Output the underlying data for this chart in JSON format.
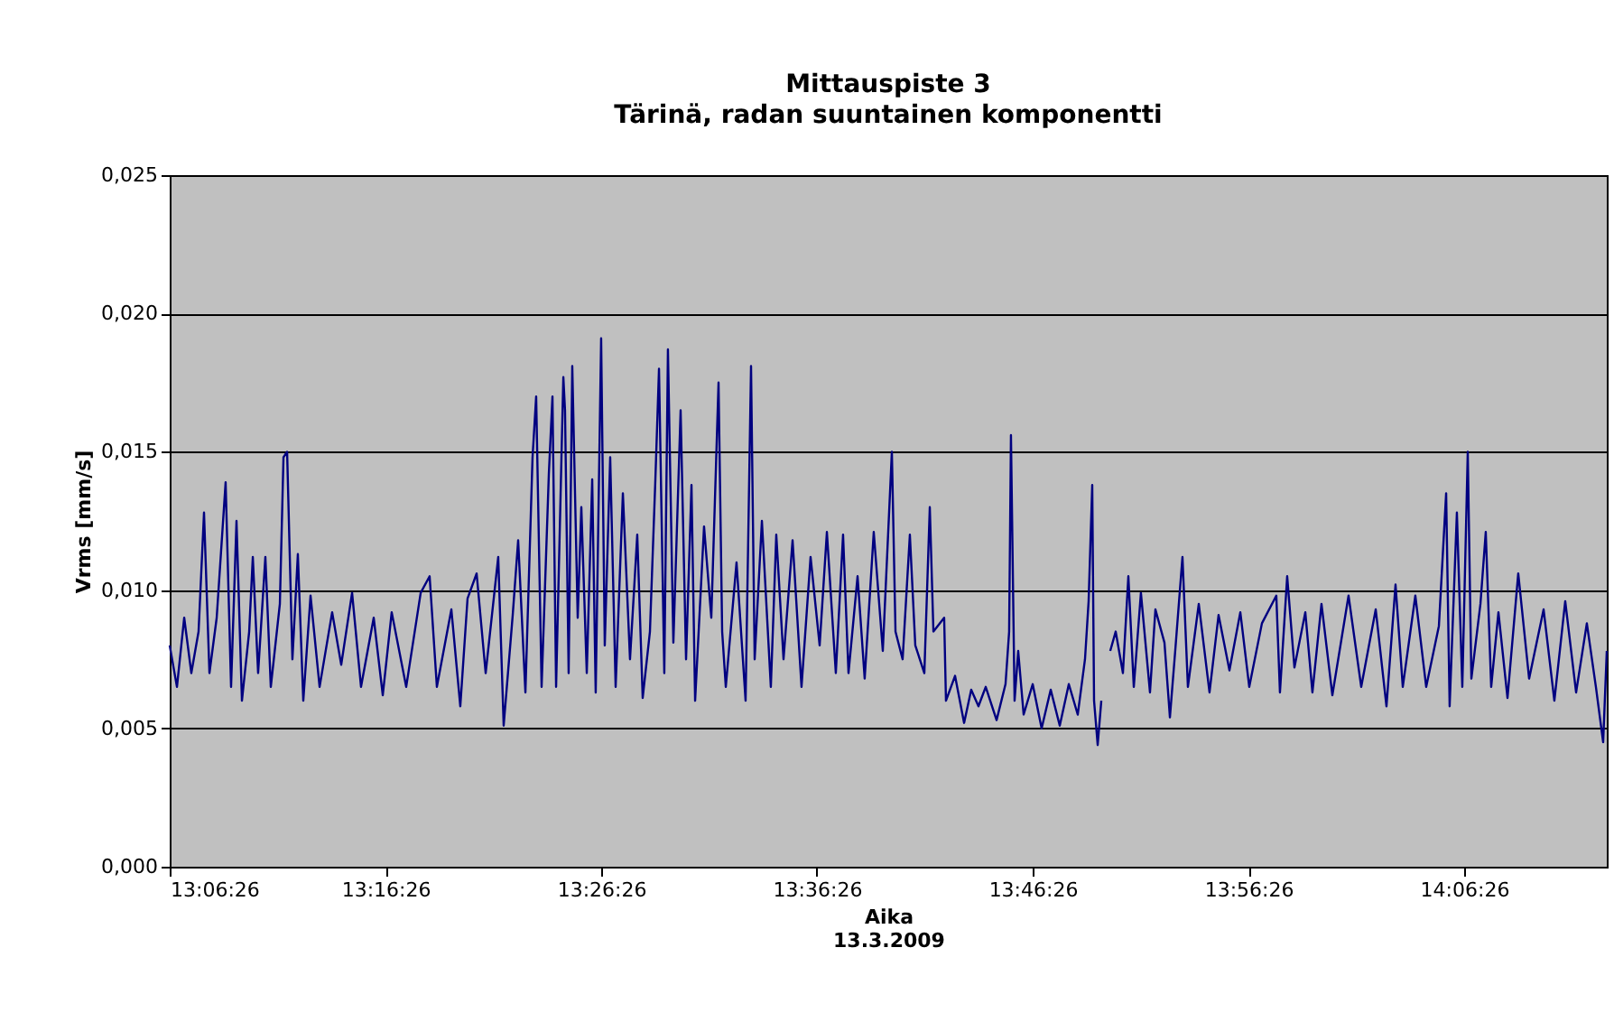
{
  "chart_data": {
    "type": "line",
    "title": "Mittauspiste 3",
    "subtitle": "Tärinä, radan suuntainen komponentti",
    "xlabel": "Aika",
    "ylabel": "Vrms [mm/s]",
    "annotations": [
      "13.3.2009"
    ],
    "x": [
      13.1072,
      13.1128,
      13.1184,
      13.1239,
      13.1295,
      13.1337,
      13.1379,
      13.1435,
      13.1504,
      13.1546,
      13.1588,
      13.163,
      13.1686,
      13.1714,
      13.1755,
      13.1811,
      13.1853,
      13.1923,
      13.1951,
      13.1979,
      13.202,
      13.2062,
      13.2104,
      13.216,
      13.223,
      13.2327,
      13.2397,
      13.2481,
      13.255,
      13.2648,
      13.2718,
      13.2787,
      13.2899,
      13.3011,
      13.308,
      13.3136,
      13.3248,
      13.3317,
      13.3373,
      13.3443,
      13.3513,
      13.361,
      13.3652,
      13.3722,
      13.3764,
      13.382,
      13.3875,
      13.3903,
      13.3945,
      13.4001,
      13.4029,
      13.4057,
      13.4113,
      13.4126,
      13.4154,
      13.4182,
      13.4224,
      13.4252,
      13.4294,
      13.4336,
      13.4363,
      13.4405,
      13.4433,
      13.4475,
      13.4517,
      13.4573,
      13.4628,
      13.4684,
      13.4726,
      13.4782,
      13.4824,
      13.4852,
      13.4893,
      13.4921,
      13.4963,
      13.5019,
      13.5061,
      13.5103,
      13.5131,
      13.52,
      13.5256,
      13.5312,
      13.534,
      13.5368,
      13.5451,
      13.5521,
      13.5563,
      13.5591,
      13.5647,
      13.5716,
      13.5758,
      13.5814,
      13.5884,
      13.5953,
      13.6023,
      13.6093,
      13.6149,
      13.6218,
      13.6274,
      13.6316,
      13.6386,
      13.6441,
      13.6511,
      13.6581,
      13.6651,
      13.6679,
      13.6734,
      13.679,
      13.6832,
      13.6902,
      13.6944,
      13.6972,
      13.7055,
      13.7069,
      13.7139,
      13.7209,
      13.7264,
      13.732,
      13.7376,
      13.746,
      13.7529,
      13.7557,
      13.7571,
      13.7599,
      13.7627,
      13.7669,
      13.7739,
      13.7808,
      13.7878,
      13.7948,
      13.8018,
      13.8087,
      13.8143,
      13.8171,
      13.8199,
      13.8213,
      13.8241,
      13.8269,
      13.83,
      13.8338,
      13.838,
      13.8436,
      13.8478,
      13.852,
      13.8575,
      13.8645,
      13.8687,
      13.8757,
      13.8799,
      13.884,
      13.8896,
      13.8938,
      13.9022,
      13.9105,
      13.9175,
      13.9259,
      13.9343,
      13.9412,
      13.951,
      13.9621,
      13.9649,
      13.9705,
      13.9761,
      13.9845,
      13.99,
      13.997,
      14.0054,
      14.0179,
      14.0277,
      14.0389,
      14.0472,
      14.0542,
      14.0598,
      14.0695,
      14.0779,
      14.0877,
      14.0933,
      14.096,
      14.1016,
      14.1058,
      14.11,
      14.1128,
      14.1198,
      14.1239,
      14.1281,
      14.1337,
      14.1407,
      14.149,
      14.1574,
      14.1686,
      14.1769,
      14.1853,
      14.1937,
      14.202,
      14.209,
      14.2146,
      14.2174
    ],
    "series": [
      {
        "color": "#000080",
        "values": [
          0.008,
          0.0065,
          0.009,
          0.007,
          0.0085,
          0.0128,
          0.007,
          0.009,
          0.0139,
          0.0065,
          0.0125,
          0.006,
          0.0085,
          0.0112,
          0.007,
          0.0112,
          0.0065,
          0.0095,
          0.0148,
          0.015,
          0.0075,
          0.0113,
          0.006,
          0.0098,
          0.0065,
          0.0092,
          0.0073,
          0.0099,
          0.0065,
          0.009,
          0.0062,
          0.0092,
          0.0065,
          0.0099,
          0.0105,
          0.0065,
          0.0093,
          0.0058,
          0.0097,
          0.0106,
          0.007,
          0.0112,
          0.0051,
          0.0091,
          0.0118,
          0.0063,
          0.0148,
          0.017,
          0.0065,
          0.0142,
          0.017,
          0.0065,
          0.0177,
          0.0165,
          0.007,
          0.0181,
          0.009,
          0.013,
          0.007,
          0.014,
          0.0063,
          0.0191,
          0.008,
          0.0148,
          0.0065,
          0.0135,
          0.0075,
          0.012,
          0.0061,
          0.0085,
          0.014,
          0.018,
          0.007,
          0.0187,
          0.0081,
          0.0165,
          0.0075,
          0.0138,
          0.006,
          0.0123,
          0.009,
          0.0175,
          0.0085,
          0.0065,
          0.011,
          0.006,
          0.0181,
          0.0075,
          0.0125,
          0.0065,
          0.012,
          0.0075,
          0.0118,
          0.0065,
          0.0112,
          0.008,
          0.0121,
          0.007,
          0.012,
          0.007,
          0.0105,
          0.0068,
          0.0121,
          0.0078,
          0.015,
          0.0085,
          0.0075,
          0.012,
          0.008,
          0.007,
          0.013,
          0.0085,
          0.009,
          0.006,
          0.0069,
          0.0052,
          0.0064,
          0.0058,
          0.0065,
          0.0053,
          0.0066,
          0.0085,
          0.0156,
          0.006,
          0.0078,
          0.0055,
          0.0066,
          0.005,
          0.0064,
          0.0051,
          0.0066,
          0.0055,
          0.0075,
          0.0096,
          0.0138,
          0.006,
          0.0044,
          0.006,
          null,
          0.0078,
          0.0085,
          0.007,
          0.0105,
          0.0065,
          0.0099,
          0.0063,
          0.0093,
          0.0081,
          0.0054,
          0.0078,
          0.0112,
          0.0065,
          0.0095,
          0.0063,
          0.0091,
          0.0071,
          0.0092,
          0.0065,
          0.0088,
          0.0098,
          0.0063,
          0.0105,
          0.0072,
          0.0092,
          0.0063,
          0.0095,
          0.0062,
          0.0098,
          0.0065,
          0.0093,
          0.0058,
          0.0102,
          0.0065,
          0.0098,
          0.0065,
          0.0087,
          0.0135,
          0.0058,
          0.0128,
          0.0065,
          0.015,
          0.0068,
          0.0095,
          0.0121,
          0.0065,
          0.0092,
          0.0061,
          0.0106,
          0.0068,
          0.0093,
          0.006,
          0.0096,
          0.0063,
          0.0088,
          0.0065,
          0.0045,
          0.0078
        ]
      }
    ],
    "xlim": [
      13.1072,
      14.2174
    ],
    "xticks": [
      {
        "value": 13.1072,
        "label": "13:06:26"
      },
      {
        "value": 13.2739,
        "label": "13:16:26"
      },
      {
        "value": 13.4406,
        "label": "13:26:26"
      },
      {
        "value": 13.6072,
        "label": "13:36:26"
      },
      {
        "value": 13.7739,
        "label": "13:46:26"
      },
      {
        "value": 13.9406,
        "label": "13:56:26"
      },
      {
        "value": 14.1072,
        "label": "14:06:26"
      }
    ],
    "ylim": [
      0,
      0.025
    ],
    "yticks": [
      {
        "value": 0,
        "label": "0,000"
      },
      {
        "value": 0.005,
        "label": "0,005"
      },
      {
        "value": 0.01,
        "label": "0,010"
      },
      {
        "value": 0.015,
        "label": "0,015"
      },
      {
        "value": 0.02,
        "label": "0,020"
      },
      {
        "value": 0.025,
        "label": "0,025"
      }
    ],
    "grid": "y",
    "marker": "none",
    "line_style": "solid"
  }
}
